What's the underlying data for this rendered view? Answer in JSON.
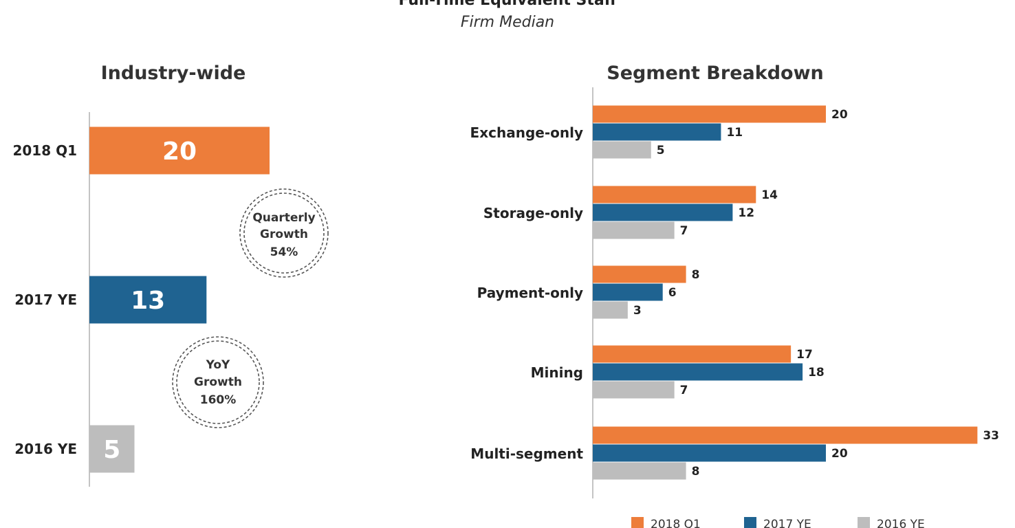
{
  "title": "Full-Time Equivalent Staff",
  "subtitle": "Firm Median",
  "colors": {
    "2018 Q1": "#ED7D3A",
    "2017 YE": "#1F6391",
    "2016 YE": "#BDBDBD"
  },
  "chart_data": [
    {
      "type": "bar",
      "orientation": "horizontal",
      "title": "Industry-wide",
      "categories": [
        "2018 Q1",
        "2017 YE",
        "2016 YE"
      ],
      "values": [
        20,
        13,
        5
      ],
      "xlim": [
        0,
        35
      ],
      "annotations": [
        {
          "line1": "Quarterly",
          "line2": "Growth",
          "line3": "54%"
        },
        {
          "line1": "YoY",
          "line2": "Growth",
          "line3": "160%"
        }
      ]
    },
    {
      "type": "bar",
      "orientation": "horizontal",
      "title": "Segment Breakdown",
      "categories": [
        "Exchange-only",
        "Storage-only",
        "Payment-only",
        "Mining",
        "Multi-segment"
      ],
      "series": [
        {
          "name": "2018 Q1",
          "values": [
            20,
            14,
            8,
            17,
            33
          ]
        },
        {
          "name": "2017 YE",
          "values": [
            11,
            12,
            6,
            18,
            20
          ]
        },
        {
          "name": "2016 YE",
          "values": [
            5,
            7,
            3,
            7,
            8
          ]
        }
      ],
      "xlim": [
        0,
        33
      ],
      "legend": "bottom"
    }
  ]
}
